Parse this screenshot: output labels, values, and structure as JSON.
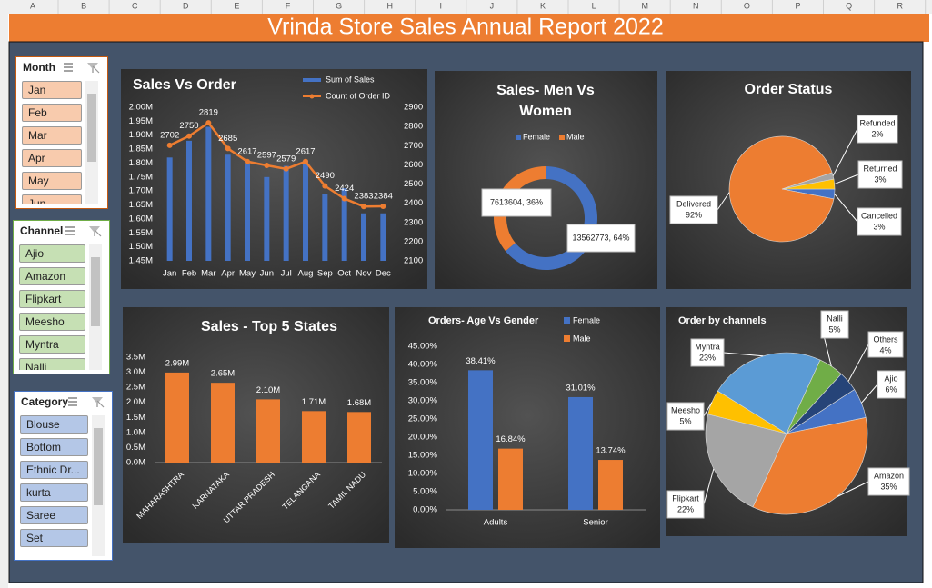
{
  "sheet": {
    "columns": [
      "A",
      "B",
      "C",
      "D",
      "E",
      "F",
      "G",
      "H",
      "I",
      "J",
      "K",
      "L",
      "M",
      "N",
      "O",
      "P",
      "Q",
      "R"
    ]
  },
  "header": {
    "title": "Vrinda Store Sales Annual Report 2022"
  },
  "slicers": [
    {
      "title": "Month",
      "items": [
        "Jan",
        "Feb",
        "Mar",
        "Apr",
        "May",
        "Jun"
      ]
    },
    {
      "title": "Channel",
      "items": [
        "Ajio",
        "Amazon",
        "Flipkart",
        "Meesho",
        "Myntra",
        "Nalli"
      ]
    },
    {
      "title": "Category",
      "items": [
        "Blouse",
        "Bottom",
        "Ethnic Dr...",
        "kurta",
        "Saree",
        "Set"
      ]
    }
  ],
  "chart_data": [
    {
      "type": "bar",
      "title": "Sales Vs Order",
      "categories": [
        "Jan",
        "Feb",
        "Mar",
        "Apr",
        "May",
        "Jun",
        "Jul",
        "Aug",
        "Sep",
        "Oct",
        "Nov",
        "Dec"
      ],
      "series": [
        {
          "name": "Sum of Sales",
          "color": "#4472c4",
          "values": [
            1820000,
            1880000,
            1930000,
            1830000,
            1800000,
            1750000,
            1790000,
            1810000,
            1690000,
            1710000,
            1620000,
            1620000
          ]
        },
        {
          "name": "Count of Order ID",
          "color": "#ed7d31",
          "type": "line",
          "axis": "y2",
          "values": [
            2702,
            2750,
            2819,
            2685,
            2617,
            2597,
            2579,
            2617,
            2490,
            2424,
            2383,
            2384
          ]
        }
      ],
      "ylim": [
        1450000,
        2000000
      ],
      "yticks": [
        {
          "value": 1450000,
          "label": "1.45M"
        },
        {
          "value": 1500000,
          "label": "1.50M"
        },
        {
          "value": 1550000,
          "label": "1.55M"
        },
        {
          "value": 1600000,
          "label": "1.60M"
        },
        {
          "value": 1650000,
          "label": "1.65M"
        },
        {
          "value": 1700000,
          "label": "1.70M"
        },
        {
          "value": 1750000,
          "label": "1.75M"
        },
        {
          "value": 1800000,
          "label": "1.80M"
        },
        {
          "value": 1850000,
          "label": "1.85M"
        },
        {
          "value": 1900000,
          "label": "1.90M"
        },
        {
          "value": 1950000,
          "label": "1.95M"
        },
        {
          "value": 2000000,
          "label": "2.00M"
        }
      ],
      "y2lim": [
        2100,
        2900
      ],
      "y2ticks": [
        2100,
        2200,
        2300,
        2400,
        2500,
        2600,
        2700,
        2800,
        2900
      ]
    },
    {
      "type": "donut",
      "title": "Sales- Men Vs Women",
      "categories": [
        "Female",
        "Male"
      ],
      "values": [
        13562773,
        7613604
      ],
      "value_labels": [
        "13562773, 64%",
        "7613604, 36%"
      ],
      "colors": [
        "#4472c4",
        "#ed7d31"
      ]
    },
    {
      "type": "pie",
      "title": "Order Status",
      "categories": [
        "Cancelled",
        "Delivered",
        "Refunded",
        "Returned"
      ],
      "values": [
        3,
        92,
        2,
        3
      ],
      "value_labels": [
        "3%",
        "92%",
        "2%",
        "3%"
      ],
      "colors": [
        "#4472c4",
        "#ed7d31",
        "#a5a5a5",
        "#ffc000"
      ]
    },
    {
      "type": "bar",
      "title": "Sales - Top 5 States",
      "categories": [
        "MAHARASHTRA",
        "KARNATAKA",
        "UTTAR PRADESH",
        "TELANGANA",
        "TAMIL NADU"
      ],
      "values": [
        2990000,
        2650000,
        2100000,
        1710000,
        1680000
      ],
      "value_labels": [
        "2.99M",
        "2.65M",
        "2.10M",
        "1.71M",
        "1.68M"
      ],
      "color": "#ed7d31",
      "ylim": [
        0,
        3500000
      ],
      "yticks": [
        {
          "value": 0,
          "label": "0.0M"
        },
        {
          "value": 500000,
          "label": "0.5M"
        },
        {
          "value": 1000000,
          "label": "1.0M"
        },
        {
          "value": 1500000,
          "label": "1.5M"
        },
        {
          "value": 2000000,
          "label": "2.0M"
        },
        {
          "value": 2500000,
          "label": "2.5M"
        },
        {
          "value": 3000000,
          "label": "3.0M"
        },
        {
          "value": 3500000,
          "label": "3.5M"
        }
      ]
    },
    {
      "type": "bar",
      "title": "Orders- Age Vs Gender",
      "categories": [
        "Adults",
        "Senior"
      ],
      "series": [
        {
          "name": "Female",
          "color": "#4472c4",
          "values": [
            38.41,
            31.01
          ],
          "value_labels": [
            "38.41%",
            "31.01%"
          ]
        },
        {
          "name": "Male",
          "color": "#ed7d31",
          "values": [
            16.84,
            13.74
          ],
          "value_labels": [
            "16.84%",
            "13.74%"
          ]
        }
      ],
      "ylim": [
        0,
        45
      ],
      "yticks": [
        {
          "value": 0,
          "label": "0.00%"
        },
        {
          "value": 5,
          "label": "5.00%"
        },
        {
          "value": 10,
          "label": "10.00%"
        },
        {
          "value": 15,
          "label": "15.00%"
        },
        {
          "value": 20,
          "label": "20.00%"
        },
        {
          "value": 25,
          "label": "25.00%"
        },
        {
          "value": 30,
          "label": "30.00%"
        },
        {
          "value": 35,
          "label": "35.00%"
        },
        {
          "value": 40,
          "label": "40.00%"
        },
        {
          "value": 45,
          "label": "45.00%"
        }
      ]
    },
    {
      "type": "pie",
      "title": "Order by channels",
      "categories": [
        "Ajio",
        "Amazon",
        "Flipkart",
        "Meesho",
        "Myntra",
        "Nalli",
        "Others"
      ],
      "values": [
        6,
        35,
        22,
        5,
        23,
        5,
        4
      ],
      "value_labels": [
        "6%",
        "35%",
        "22%",
        "5%",
        "23%",
        "5%",
        "4%"
      ],
      "colors": [
        "#4472c4",
        "#ed7d31",
        "#a5a5a5",
        "#ffc000",
        "#5b9bd5",
        "#70ad47",
        "#264478"
      ]
    }
  ]
}
